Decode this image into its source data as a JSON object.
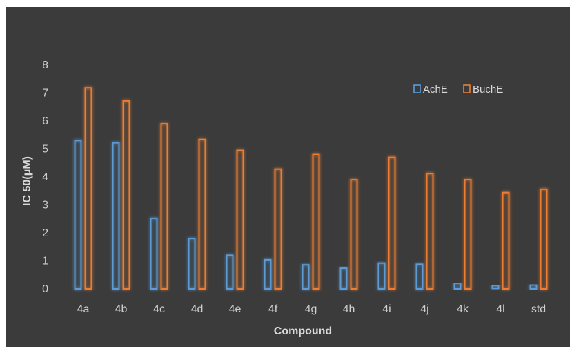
{
  "chart_data": {
    "type": "bar",
    "title": "",
    "xlabel": "Compound",
    "ylabel": "IC 50(μM)",
    "ylim": [
      0,
      8
    ],
    "yticks": [
      0,
      1,
      2,
      3,
      4,
      5,
      6,
      7,
      8
    ],
    "grid": false,
    "legend_position": "top-right",
    "categories": [
      "4a",
      "4b",
      "4c",
      "4d",
      "4e",
      "4f",
      "4g",
      "4h",
      "4i",
      "4j",
      "4k",
      "4l",
      "std"
    ],
    "series": [
      {
        "name": "AchE",
        "color": "#5b9bd5",
        "values": [
          5.3,
          5.22,
          2.52,
          1.8,
          1.2,
          1.04,
          0.86,
          0.74,
          0.92,
          0.88,
          0.2,
          0.12,
          0.14
        ]
      },
      {
        "name": "BuchE",
        "color": "#ed7d31",
        "values": [
          7.18,
          6.72,
          5.9,
          5.34,
          4.95,
          4.28,
          4.8,
          3.9,
          4.7,
          4.12,
          3.9,
          3.44,
          3.56
        ]
      }
    ]
  }
}
